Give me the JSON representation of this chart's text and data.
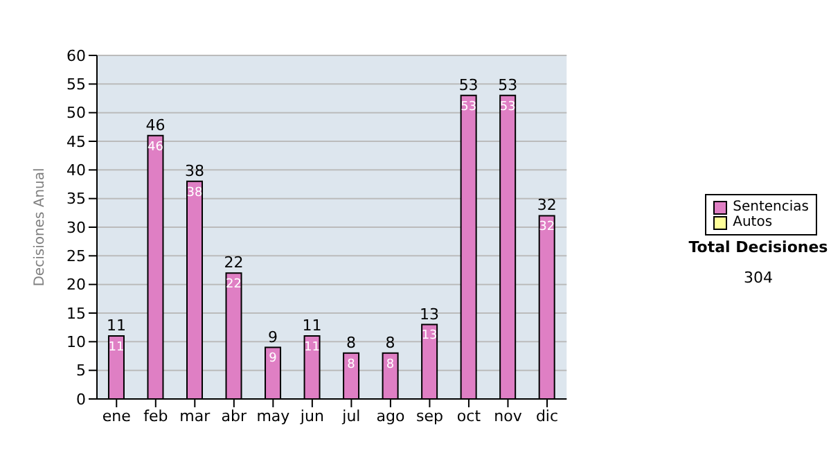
{
  "chart_data": {
    "type": "bar",
    "ylabel": "Decisiones Anual",
    "categories": [
      "ene",
      "feb",
      "mar",
      "abr",
      "may",
      "jun",
      "jul",
      "ago",
      "sep",
      "oct",
      "nov",
      "dic"
    ],
    "series": [
      {
        "name": "Sentencias",
        "color": "#df7fc4",
        "values": [
          11,
          46,
          38,
          22,
          9,
          11,
          8,
          8,
          13,
          53,
          53,
          32
        ]
      },
      {
        "name": "Autos",
        "color": "#ffff99",
        "values": [
          null,
          null,
          null,
          null,
          null,
          null,
          null,
          null,
          null,
          null,
          null,
          null
        ]
      }
    ],
    "stacked": true,
    "data_labels": true,
    "totals": [
      "11",
      "46",
      "38",
      "22",
      "9",
      "11",
      "8",
      "8",
      "13",
      "53",
      "53",
      "32"
    ],
    "ylim": [
      0,
      60
    ],
    "yticks": [
      0,
      5,
      10,
      15,
      20,
      25,
      30,
      35,
      40,
      45,
      50,
      55,
      60
    ],
    "grid": "y",
    "legend": "right",
    "annotations": [
      "Total Decisiones",
      "304"
    ]
  }
}
